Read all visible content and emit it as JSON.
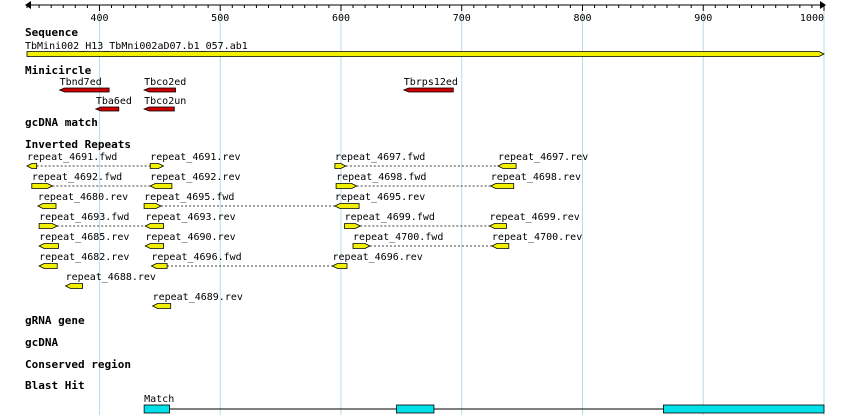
{
  "colors": {
    "grid": "#b8dce8",
    "axis": "#000000",
    "sequence_fill": "#f0f000",
    "minicircle_fill": "#cc0000",
    "repeat_fill": "#f0f000",
    "blast_fill": "#00e0e8",
    "feature_stroke": "#000000"
  },
  "ruler": {
    "start": 340,
    "end": 1000,
    "major_ticks": [
      400,
      500,
      600,
      700,
      800,
      900,
      1000
    ],
    "minor_step": 10
  },
  "tracks": {
    "sequence": {
      "title": "Sequence",
      "name": "TbMini002_H13_TbMni002aD07.b1_057.ab1",
      "start": 340,
      "end": 1000
    },
    "minicircle": {
      "title": "Minicircle",
      "features": [
        {
          "label": "Tbnd7ed",
          "start": 367,
          "end": 408,
          "row": 0,
          "dir": "rev"
        },
        {
          "label": "Tbco2ed",
          "start": 437,
          "end": 463,
          "row": 0,
          "dir": "rev"
        },
        {
          "label": "Tbrps12ed",
          "start": 652,
          "end": 693,
          "row": 0,
          "dir": "rev"
        },
        {
          "label": "Tba6ed",
          "start": 397,
          "end": 416,
          "row": 1,
          "dir": "rev"
        },
        {
          "label": "Tbco2un",
          "start": 437,
          "end": 462,
          "row": 1,
          "dir": "rev"
        }
      ]
    },
    "gcdna_match": {
      "title": "gcDNA match"
    },
    "inverted_repeats": {
      "title": "Inverted Repeats",
      "pairs": [
        {
          "row": 0,
          "a": {
            "label": "repeat_4691.fwd",
            "start": 340,
            "end": 348,
            "dir": "rev"
          },
          "b": {
            "label": "repeat_4691.rev",
            "start": 442,
            "end": 453,
            "dir": "fwd"
          }
        },
        {
          "row": 0,
          "a": {
            "label": "repeat_4697.fwd",
            "start": 595,
            "end": 604,
            "dir": "fwd"
          },
          "b": {
            "label": "repeat_4697.rev",
            "start": 730,
            "end": 745,
            "dir": "rev"
          }
        },
        {
          "row": 1,
          "a": {
            "label": "repeat_4692.fwd",
            "start": 344,
            "end": 361,
            "dir": "fwd"
          },
          "b": {
            "label": "repeat_4692.rev",
            "start": 442,
            "end": 460,
            "dir": "rev"
          }
        },
        {
          "row": 1,
          "a": {
            "label": "repeat_4698.fwd",
            "start": 596,
            "end": 613,
            "dir": "fwd"
          },
          "b": {
            "label": "repeat_4698.rev",
            "start": 724,
            "end": 743,
            "dir": "rev"
          }
        },
        {
          "row": 2,
          "a": {
            "label": "repeat_4680.rev",
            "start": 349,
            "end": 364,
            "dir": "rev"
          },
          "b": null
        },
        {
          "row": 2,
          "a": {
            "label": "repeat_4695.fwd",
            "start": 437,
            "end": 451,
            "dir": "fwd"
          },
          "b": {
            "label": "repeat_4695.rev",
            "start": 595,
            "end": 615,
            "dir": "rev"
          }
        },
        {
          "row": 3,
          "a": {
            "label": "repeat_4693.fwd",
            "start": 350,
            "end": 365,
            "dir": "fwd"
          },
          "b": {
            "label": "repeat_4693.rev",
            "start": 438,
            "end": 453,
            "dir": "rev"
          }
        },
        {
          "row": 3,
          "a": {
            "label": "repeat_4699.fwd",
            "start": 603,
            "end": 616,
            "dir": "fwd"
          },
          "b": {
            "label": "repeat_4699.rev",
            "start": 723,
            "end": 737,
            "dir": "rev"
          }
        },
        {
          "row": 4,
          "a": {
            "label": "repeat_4685.rev",
            "start": 350,
            "end": 366,
            "dir": "rev"
          },
          "b": null
        },
        {
          "row": 4,
          "a": {
            "label": "repeat_4690.rev",
            "start": 438,
            "end": 453,
            "dir": "rev"
          },
          "b": null
        },
        {
          "row": 4,
          "a": {
            "label": "repeat_4700.fwd",
            "start": 610,
            "end": 624,
            "dir": "fwd"
          },
          "b": {
            "label": "repeat_4700.rev",
            "start": 725,
            "end": 739,
            "dir": "rev"
          }
        },
        {
          "row": 5,
          "a": {
            "label": "repeat_4682.rev",
            "start": 350,
            "end": 365,
            "dir": "rev"
          },
          "b": null
        },
        {
          "row": 5,
          "a": {
            "label": "repeat_4696.fwd",
            "start": 443,
            "end": 456,
            "dir": "rev"
          },
          "b": {
            "label": "repeat_4696.rev",
            "start": 593,
            "end": 605,
            "dir": "rev"
          }
        },
        {
          "row": 6,
          "a": {
            "label": "repeat_4688.rev",
            "start": 372,
            "end": 386,
            "dir": "rev"
          },
          "b": null
        },
        {
          "row": 7,
          "a": {
            "label": "repeat_4689.rev",
            "start": 444,
            "end": 459,
            "dir": "rev"
          },
          "b": null
        }
      ]
    },
    "grna_gene": {
      "title": "gRNA gene"
    },
    "gcdna": {
      "title": "gcDNA"
    },
    "conserved_region": {
      "title": "Conserved region"
    },
    "blast_hit": {
      "title": "Blast Hit",
      "label": "Match",
      "start": 437,
      "end": 1000,
      "blocks": [
        [
          437,
          458
        ],
        [
          646,
          677
        ],
        [
          867,
          1000
        ]
      ]
    }
  }
}
